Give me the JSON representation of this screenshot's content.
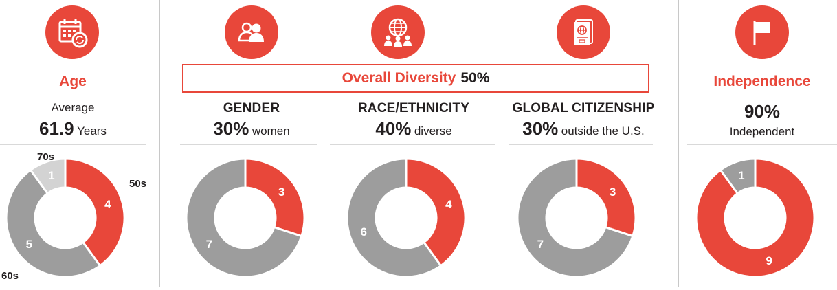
{
  "colors": {
    "red": "#e8473a",
    "gray": "#9d9d9d",
    "light_gray": "#d3d3d3"
  },
  "icons": {
    "age": "calendar-refresh-icon",
    "gender": "people-icon",
    "race": "globe-people-icon",
    "citizenship": "passport-icon",
    "independence": "flag-icon"
  },
  "age": {
    "title": "Age",
    "line1": "Average",
    "value": "61.9",
    "unit": "Years"
  },
  "overall": {
    "label": "Overall Diversity",
    "value": "50%"
  },
  "gender": {
    "heading": "GENDER",
    "value": "30%",
    "desc": "women"
  },
  "race": {
    "heading": "RACE/ETHNICITY",
    "value": "40%",
    "desc": "diverse"
  },
  "citizenship": {
    "heading": "GLOBAL CITIZENSHIP",
    "value": "30%",
    "desc": "outside the U.S."
  },
  "independence": {
    "title": "Independence",
    "value": "90%",
    "desc": "Independent"
  },
  "chart_data": [
    {
      "type": "pie",
      "id": "age",
      "categories": [
        "50s",
        "60s",
        "70s"
      ],
      "values": [
        4,
        5,
        1
      ],
      "colors": [
        "#e8473a",
        "#9d9d9d",
        "#d3d3d3"
      ]
    },
    {
      "type": "pie",
      "id": "gender",
      "categories": [
        "",
        ""
      ],
      "values": [
        3,
        7
      ],
      "colors": [
        "#e8473a",
        "#9d9d9d"
      ]
    },
    {
      "type": "pie",
      "id": "race",
      "categories": [
        "",
        ""
      ],
      "values": [
        4,
        6
      ],
      "colors": [
        "#e8473a",
        "#9d9d9d"
      ]
    },
    {
      "type": "pie",
      "id": "citizenship",
      "categories": [
        "",
        ""
      ],
      "values": [
        3,
        7
      ],
      "colors": [
        "#e8473a",
        "#9d9d9d"
      ]
    },
    {
      "type": "pie",
      "id": "independence",
      "categories": [
        "",
        ""
      ],
      "values": [
        9,
        1
      ],
      "colors": [
        "#e8473a",
        "#9d9d9d"
      ]
    }
  ]
}
